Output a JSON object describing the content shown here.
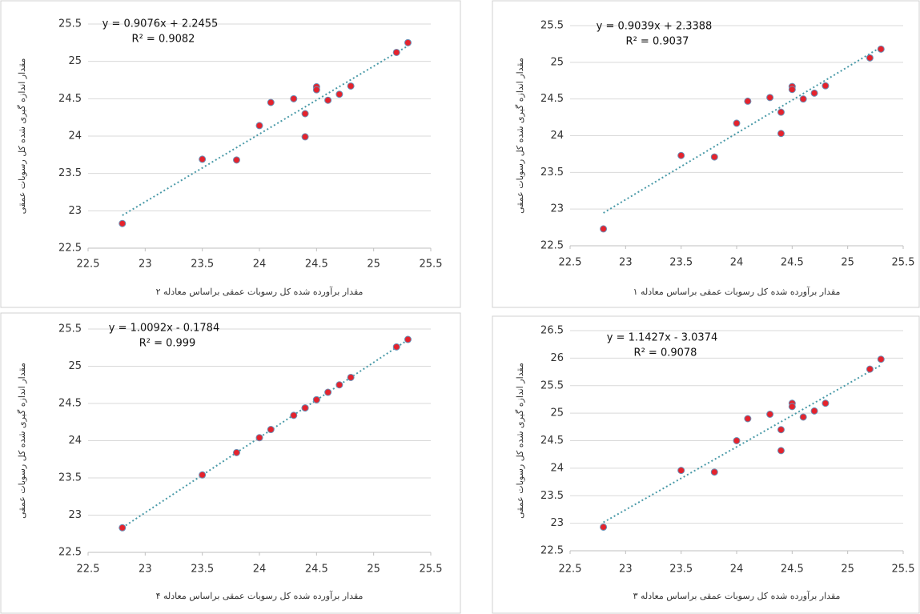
{
  "chart_data": [
    {
      "type": "scatter",
      "equation": "y = 0.9076x + 2.2455",
      "r_squared": "R² = 0.9082",
      "x_label": "مقدار برآورده شده کل رسوبات عمقی براساس معادله ۲",
      "y_label": "مقدار اندازه گیری شده کل رسوبات عمقی",
      "x": [
        22.8,
        23.5,
        23.8,
        24.0,
        24.1,
        24.3,
        24.4,
        24.4,
        24.5,
        24.5,
        24.6,
        24.7,
        24.8,
        25.2,
        25.3
      ],
      "values": [
        22.83,
        23.69,
        23.68,
        24.14,
        24.45,
        24.5,
        24.3,
        23.99,
        24.66,
        24.62,
        24.48,
        24.56,
        24.67,
        25.12,
        25.25
      ],
      "trendline": {
        "slope": 0.9076,
        "intercept": 2.2455
      },
      "xlim": [
        22.5,
        25.5
      ],
      "xticks": [
        22.5,
        23,
        23.5,
        24,
        24.5,
        25,
        25.5
      ],
      "ylim": [
        22.5,
        25.5
      ],
      "yticks": [
        22.5,
        23,
        23.5,
        24,
        24.5,
        25,
        25.5
      ],
      "color": "#e4232d",
      "edge_color": "#6d8fb5",
      "trendline_color": "#4a9aa8",
      "grid": true
    },
    {
      "type": "scatter",
      "equation": "y = 0.9039x + 2.3388",
      "r_squared": "R² = 0.9037",
      "x_label": "مقدار برآورده شده کل رسوبات عمقی براساس معادله ۱",
      "y_label": "مقدار اندازه گیری شده کل رسوبات عمقی",
      "x": [
        22.8,
        23.5,
        23.8,
        24.0,
        24.1,
        24.3,
        24.4,
        24.4,
        24.5,
        24.5,
        24.6,
        24.7,
        24.8,
        25.2,
        25.3
      ],
      "values": [
        22.73,
        23.73,
        23.71,
        24.17,
        24.47,
        24.52,
        24.32,
        24.03,
        24.67,
        24.63,
        24.5,
        24.58,
        24.68,
        25.06,
        25.18
      ],
      "trendline": {
        "slope": 0.9039,
        "intercept": 2.3388
      },
      "xlim": [
        22.5,
        25.5
      ],
      "xticks": [
        22.5,
        23,
        23.5,
        24,
        24.5,
        25,
        25.5
      ],
      "ylim": [
        22.5,
        25.5
      ],
      "yticks": [
        22.5,
        23,
        23.5,
        24,
        24.5,
        25,
        25.5
      ],
      "color": "#e4232d",
      "edge_color": "#6d8fb5",
      "trendline_color": "#4a9aa8",
      "grid": true
    },
    {
      "type": "scatter",
      "equation": "y = 1.0092x - 0.1784",
      "r_squared": "R² = 0.999",
      "x_label": "مقدار برآورده شده کل رسوبات عمقی براساس معادله ۴",
      "y_label": "مقدار اندازه گیری شده کل رسوبات عمقی",
      "x": [
        22.8,
        23.5,
        23.8,
        24.0,
        24.1,
        24.3,
        24.4,
        24.4,
        24.5,
        24.5,
        24.6,
        24.7,
        24.8,
        25.2,
        25.3
      ],
      "values": [
        22.83,
        23.54,
        23.84,
        24.04,
        24.15,
        24.34,
        24.44,
        24.44,
        24.55,
        24.55,
        24.65,
        24.75,
        24.85,
        25.26,
        25.36
      ],
      "trendline": {
        "slope": 1.0092,
        "intercept": -0.1784
      },
      "xlim": [
        22.5,
        25.5
      ],
      "xticks": [
        22.5,
        23,
        23.5,
        24,
        24.5,
        25,
        25.5
      ],
      "ylim": [
        22.5,
        25.5
      ],
      "yticks": [
        22.5,
        23,
        23.5,
        24,
        24.5,
        25,
        25.5
      ],
      "color": "#e4232d",
      "edge_color": "#6d8fb5",
      "trendline_color": "#4a9aa8",
      "grid": true
    },
    {
      "type": "scatter",
      "equation": "y = 1.1427x - 3.0374",
      "r_squared": "R² = 0.9078",
      "x_label": "مقدار برآورده شده کل رسوبات عمقی براساس معادله ۳",
      "y_label": "مقدار اندازه گیری شده کل رسوبات عمقی",
      "x": [
        22.8,
        23.5,
        23.8,
        24.0,
        24.1,
        24.3,
        24.4,
        24.4,
        24.5,
        24.5,
        24.6,
        24.7,
        24.8,
        25.2,
        25.3
      ],
      "values": [
        22.93,
        23.96,
        23.93,
        24.5,
        24.9,
        24.98,
        24.7,
        24.32,
        25.18,
        25.12,
        24.93,
        25.04,
        25.18,
        25.8,
        25.98
      ],
      "trendline": {
        "slope": 1.1427,
        "intercept": -3.0374
      },
      "xlim": [
        22.5,
        25.5
      ],
      "xticks": [
        22.5,
        23,
        23.5,
        24,
        24.5,
        25,
        25.5
      ],
      "ylim": [
        22.5,
        26.5
      ],
      "yticks": [
        22.5,
        23,
        23.5,
        24,
        24.5,
        25,
        25.5,
        26,
        26.5
      ],
      "color": "#e4232d",
      "edge_color": "#6d8fb5",
      "trendline_color": "#4a9aa8",
      "grid": true
    }
  ]
}
